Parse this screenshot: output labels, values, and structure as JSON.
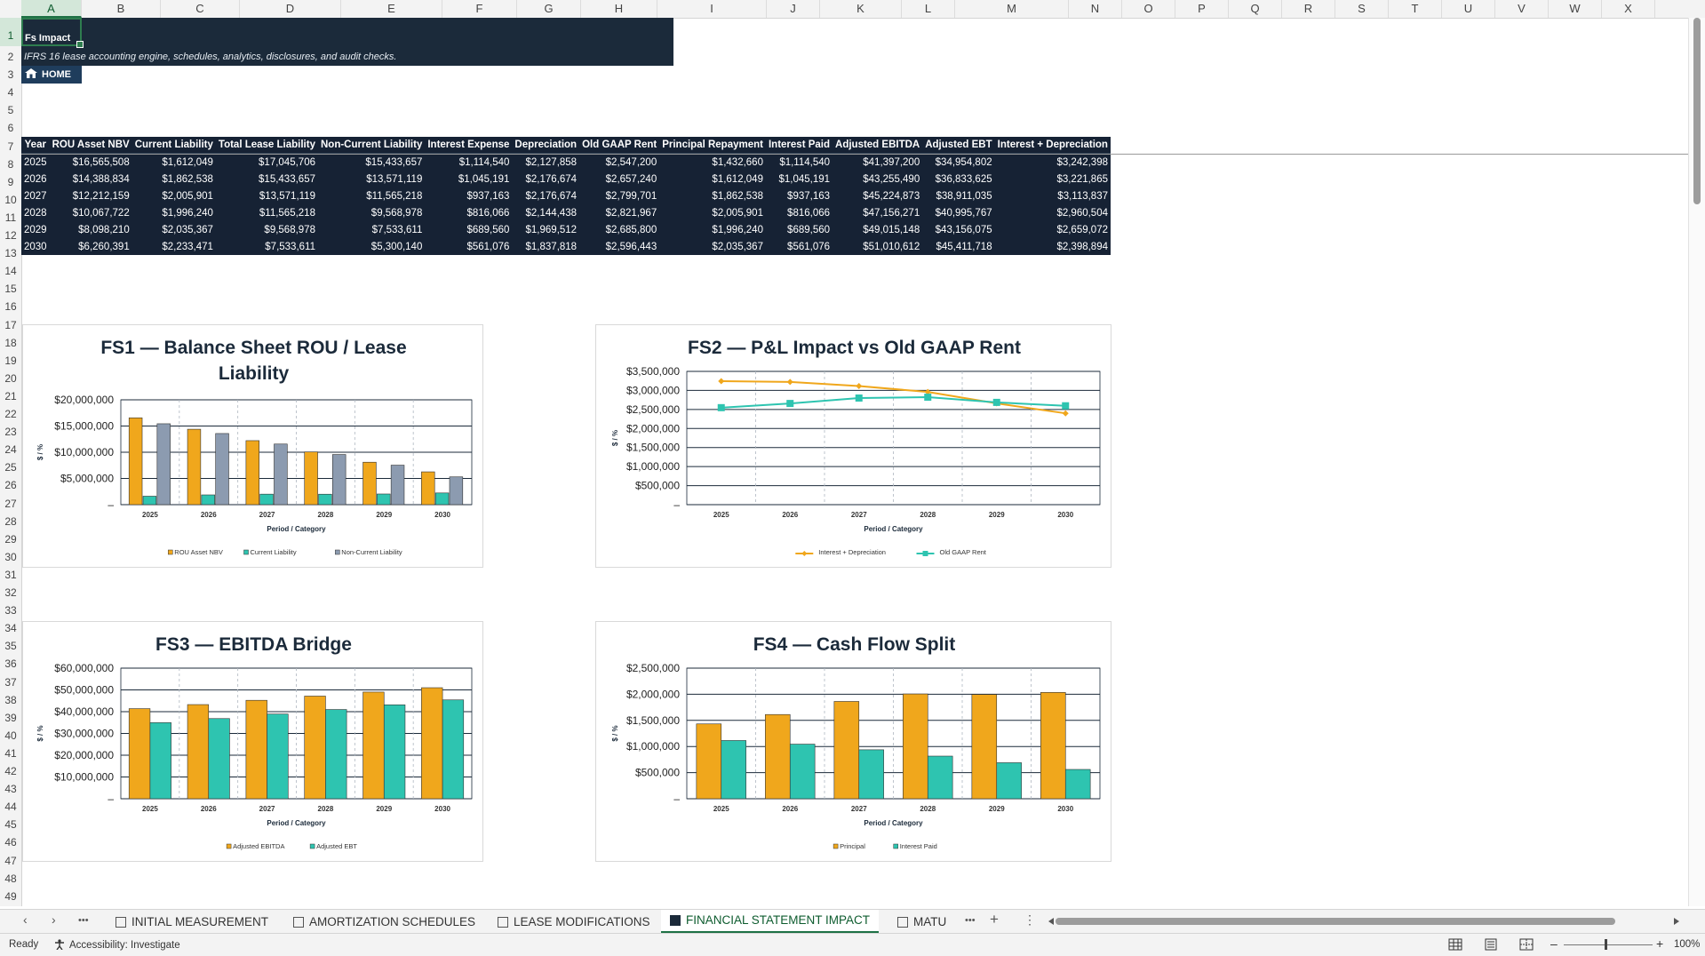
{
  "columns": [
    "A",
    "B",
    "C",
    "D",
    "E",
    "F",
    "G",
    "H",
    "I",
    "J",
    "K",
    "L",
    "M",
    "N",
    "O",
    "P",
    "Q",
    "R",
    "S",
    "T",
    "U",
    "V",
    "W",
    "X"
  ],
  "rows": [
    "1",
    "2",
    "3",
    "4",
    "5",
    "6",
    "7",
    "8",
    "9",
    "10",
    "11",
    "12",
    "13",
    "14",
    "15",
    "16",
    "17",
    "18",
    "19",
    "20",
    "21",
    "22",
    "23",
    "24",
    "25",
    "26",
    "27",
    "28",
    "29",
    "30",
    "31",
    "32",
    "33",
    "34",
    "35",
    "36",
    "37",
    "38",
    "39",
    "40",
    "41",
    "42",
    "43",
    "44",
    "45",
    "46",
    "47",
    "48",
    "49"
  ],
  "sheet": {
    "title": "Fs Impact",
    "subtitle": "IFRS 16 lease accounting engine, schedules, analytics, disclosures, and audit checks.",
    "home_label": "HOME"
  },
  "table": {
    "headers": [
      "Year",
      "ROU Asset NBV",
      "Current Liability",
      "Total Lease Liability",
      "Non-Current Liability",
      "Interest Expense",
      "Depreciation",
      "Old GAAP Rent",
      "Principal Repayment",
      "Interest Paid",
      "Adjusted EBITDA",
      "Adjusted EBT",
      "Interest + Depreciation"
    ],
    "rows": [
      [
        "2025",
        "$16,565,508",
        "$1,612,049",
        "$17,045,706",
        "$15,433,657",
        "$1,114,540",
        "$2,127,858",
        "$2,547,200",
        "$1,432,660",
        "$1,114,540",
        "$41,397,200",
        "$34,954,802",
        "$3,242,398"
      ],
      [
        "2026",
        "$14,388,834",
        "$1,862,538",
        "$15,433,657",
        "$13,571,119",
        "$1,045,191",
        "$2,176,674",
        "$2,657,240",
        "$1,612,049",
        "$1,045,191",
        "$43,255,490",
        "$36,833,625",
        "$3,221,865"
      ],
      [
        "2027",
        "$12,212,159",
        "$2,005,901",
        "$13,571,119",
        "$11,565,218",
        "$937,163",
        "$2,176,674",
        "$2,799,701",
        "$1,862,538",
        "$937,163",
        "$45,224,873",
        "$38,911,035",
        "$3,113,837"
      ],
      [
        "2028",
        "$10,067,722",
        "$1,996,240",
        "$11,565,218",
        "$9,568,978",
        "$816,066",
        "$2,144,438",
        "$2,821,967",
        "$2,005,901",
        "$816,066",
        "$47,156,271",
        "$40,995,767",
        "$2,960,504"
      ],
      [
        "2029",
        "$8,098,210",
        "$2,035,367",
        "$9,568,978",
        "$7,533,611",
        "$689,560",
        "$1,969,512",
        "$2,685,800",
        "$1,996,240",
        "$689,560",
        "$49,015,148",
        "$43,156,075",
        "$2,659,072"
      ],
      [
        "2030",
        "$6,260,391",
        "$2,233,471",
        "$7,533,611",
        "$5,300,140",
        "$561,076",
        "$1,837,818",
        "$2,596,443",
        "$2,035,367",
        "$561,076",
        "$51,010,612",
        "$45,411,718",
        "$2,398,894"
      ]
    ]
  },
  "colors": {
    "orange": "#f0a71c",
    "teal": "#2ec4b0",
    "grey": "#8c9bb0",
    "navy": "#1b2a3a"
  },
  "chart_data": [
    {
      "type": "bar",
      "title": "FS1 — Balance Sheet ROU / Lease Liability",
      "xlabel": "Period / Category",
      "ylabel": "$ / %",
      "categories": [
        "2025",
        "2026",
        "2027",
        "2028",
        "2029",
        "2030"
      ],
      "ylim": [
        0,
        20000000
      ],
      "yticks": [
        "–",
        "$5,000,000",
        "$10,000,000",
        "$15,000,000",
        "$20,000,000"
      ],
      "legend": "bottom",
      "series": [
        {
          "name": "ROU Asset NBV",
          "color": "#f0a71c",
          "values": [
            16565508,
            14388834,
            12212159,
            10067722,
            8098210,
            6260391
          ]
        },
        {
          "name": "Current Liability",
          "color": "#2ec4b0",
          "values": [
            1612049,
            1862538,
            2005901,
            1996240,
            2035367,
            2233471
          ]
        },
        {
          "name": "Non-Current Liability",
          "color": "#8c9bb0",
          "values": [
            15433657,
            13571119,
            11565218,
            9568978,
            7533611,
            5300140
          ]
        }
      ]
    },
    {
      "type": "line",
      "title": "FS2 — P&L Impact vs Old GAAP Rent",
      "xlabel": "Period / Category",
      "ylabel": "$ / %",
      "categories": [
        "2025",
        "2026",
        "2027",
        "2028",
        "2029",
        "2030"
      ],
      "ylim": [
        0,
        3500000
      ],
      "yticks": [
        "–",
        "$500,000",
        "$1,000,000",
        "$1,500,000",
        "$2,000,000",
        "$2,500,000",
        "$3,000,000",
        "$3,500,000"
      ],
      "legend": "bottom",
      "series": [
        {
          "name": "Interest + Depreciation",
          "color": "#f0a71c",
          "marker": "diamond",
          "values": [
            3242398,
            3221865,
            3113837,
            2960504,
            2659072,
            2398894
          ]
        },
        {
          "name": "Old GAAP Rent",
          "color": "#2ec4b0",
          "marker": "square",
          "values": [
            2547200,
            2657240,
            2799701,
            2821967,
            2685800,
            2596443
          ]
        }
      ]
    },
    {
      "type": "bar",
      "title": "FS3 — EBITDA Bridge",
      "xlabel": "Period / Category",
      "ylabel": "$ / %",
      "categories": [
        "2025",
        "2026",
        "2027",
        "2028",
        "2029",
        "2030"
      ],
      "ylim": [
        0,
        60000000
      ],
      "yticks": [
        "–",
        "$10,000,000",
        "$20,000,000",
        "$30,000,000",
        "$40,000,000",
        "$50,000,000",
        "$60,000,000"
      ],
      "legend": "bottom",
      "series": [
        {
          "name": "Adjusted EBITDA",
          "color": "#f0a71c",
          "values": [
            41397200,
            43255490,
            45224873,
            47156271,
            49015148,
            51010612
          ]
        },
        {
          "name": "Adjusted EBT",
          "color": "#2ec4b0",
          "values": [
            34954802,
            36833625,
            38911035,
            40995767,
            43156075,
            45411718
          ]
        }
      ]
    },
    {
      "type": "bar",
      "title": "FS4 — Cash Flow Split",
      "xlabel": "Period / Category",
      "ylabel": "$ / %",
      "categories": [
        "2025",
        "2026",
        "2027",
        "2028",
        "2029",
        "2030"
      ],
      "ylim": [
        0,
        2500000
      ],
      "yticks": [
        "–",
        "$500,000",
        "$1,000,000",
        "$1,500,000",
        "$2,000,000",
        "$2,500,000"
      ],
      "legend": "bottom",
      "series": [
        {
          "name": "Principal",
          "color": "#f0a71c",
          "values": [
            1432660,
            1612049,
            1862538,
            2005901,
            1996240,
            2035367
          ]
        },
        {
          "name": "Interest Paid",
          "color": "#2ec4b0",
          "values": [
            1114540,
            1045191,
            937163,
            816066,
            689560,
            561076
          ]
        }
      ]
    }
  ],
  "tabs": {
    "items": [
      {
        "label": "INITIAL MEASUREMENT",
        "active": false
      },
      {
        "label": "AMORTIZATION SCHEDULES",
        "active": false
      },
      {
        "label": "LEASE MODIFICATIONS",
        "active": false
      },
      {
        "label": "FINANCIAL STATEMENT IMPACT",
        "active": true
      },
      {
        "label": "MATU",
        "active": false
      }
    ],
    "nav_prev": "‹",
    "nav_next": "›",
    "more": "•••",
    "add": "+",
    "options": "⋮"
  },
  "status": {
    "ready": "Ready",
    "accessibility": "Accessibility: Investigate",
    "zoom": "100%",
    "zoom_minus": "–",
    "zoom_plus": "+"
  }
}
